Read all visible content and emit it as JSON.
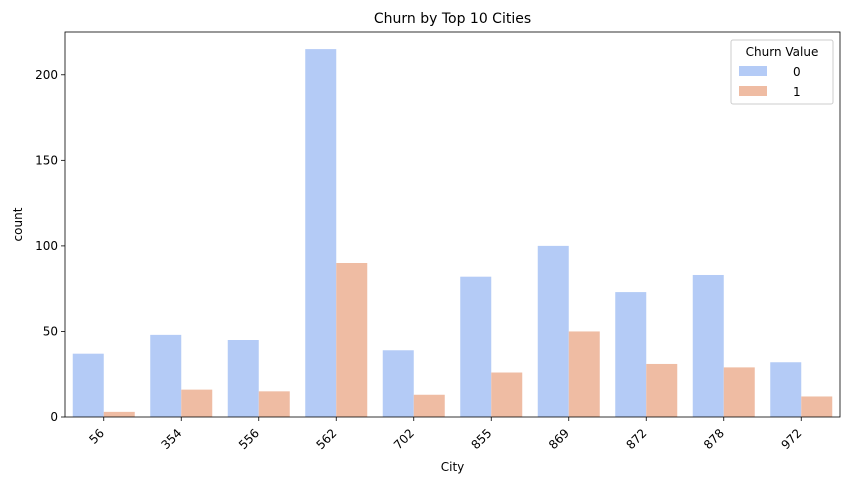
{
  "chart_data": {
    "type": "bar",
    "title": "Churn by Top 10 Cities",
    "xlabel": "City",
    "ylabel": "count",
    "categories": [
      "56",
      "354",
      "556",
      "562",
      "702",
      "855",
      "869",
      "872",
      "878",
      "972"
    ],
    "series": [
      {
        "name": "0",
        "color": "#b4cbf6",
        "values": [
          37,
          48,
          45,
          215,
          39,
          82,
          100,
          73,
          83,
          32
        ]
      },
      {
        "name": "1",
        "color": "#efbca3",
        "values": [
          3,
          16,
          15,
          90,
          13,
          26,
          50,
          31,
          29,
          12
        ]
      }
    ],
    "ylim": [
      0,
      225
    ],
    "yticks": [
      0,
      50,
      100,
      150,
      200
    ],
    "legend": {
      "title": "Churn Value",
      "placement": "top-right"
    },
    "grid": false
  }
}
